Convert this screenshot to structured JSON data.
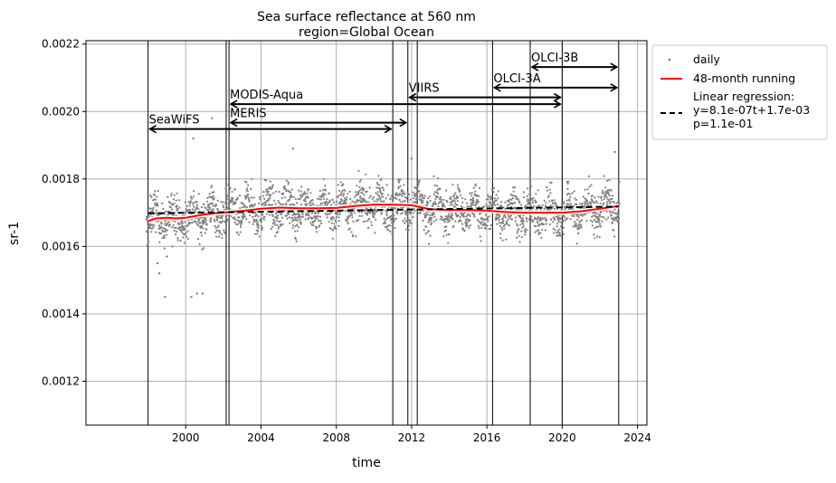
{
  "chart_data": {
    "type": "scatter",
    "title": "Sea surface reflectance at 560 nm",
    "subtitle": "region=Global Ocean",
    "xlabel": "time",
    "ylabel": "sr-1",
    "xlim": [
      1994.7,
      2024.5
    ],
    "ylim": [
      0.00107,
      0.00221
    ],
    "x_ticks": [
      2000,
      2004,
      2008,
      2012,
      2016,
      2020,
      2024
    ],
    "x_tick_labels": [
      "2000",
      "2004",
      "2008",
      "2012",
      "2016",
      "2020",
      "2024"
    ],
    "y_ticks": [
      0.0012,
      0.0014,
      0.0016,
      0.0018,
      0.002,
      0.0022
    ],
    "y_tick_labels": [
      "0.0012",
      "0.0014",
      "0.0016",
      "0.0018",
      "0.0020",
      "0.0022"
    ],
    "grid": true,
    "legend_position": "outside-top-right",
    "legend": [
      {
        "label": "daily",
        "style": "point",
        "color": "#808080"
      },
      {
        "label": "48-month running",
        "style": "line",
        "color": "#ff0000"
      },
      {
        "label": "Linear regression:\ny=8.1e-07t+1.7e-03\np=1.1e-01",
        "style": "dashed",
        "color": "#000000"
      }
    ],
    "daily_series": {
      "name": "daily",
      "x_range": [
        1997.9,
        2023.05
      ],
      "typical_range": [
        0.00163,
        0.00178
      ],
      "outliers": [
        {
          "x": 1998.5,
          "y": 0.00155
        },
        {
          "x": 1998.6,
          "y": 0.00152
        },
        {
          "x": 1999.0,
          "y": 0.00157
        },
        {
          "x": 1998.9,
          "y": 0.00145
        },
        {
          "x": 1999.3,
          "y": 0.0016
        },
        {
          "x": 2000.3,
          "y": 0.00145
        },
        {
          "x": 2000.6,
          "y": 0.00146
        },
        {
          "x": 2000.9,
          "y": 0.00146
        },
        {
          "x": 2000.4,
          "y": 0.00192
        },
        {
          "x": 2002.3,
          "y": 0.0019
        },
        {
          "x": 2001.4,
          "y": 0.00198
        },
        {
          "x": 2005.7,
          "y": 0.00189
        },
        {
          "x": 2012.0,
          "y": 0.00186
        },
        {
          "x": 2022.8,
          "y": 0.00188
        }
      ]
    },
    "running_mean": {
      "name": "48-month running",
      "x": [
        1998.0,
        1998.4,
        1999.0,
        1999.5,
        2000.0,
        2000.5,
        2001.0,
        2001.5,
        2002.0,
        2002.5,
        2003.0,
        2004.0,
        2005.0,
        2006.0,
        2007.0,
        2008.0,
        2009.0,
        2010.0,
        2011.0,
        2012.0,
        2013.0,
        2014.0,
        2015.0,
        2016.0,
        2017.0,
        2018.0,
        2019.0,
        2020.0,
        2021.0,
        2022.0,
        2023.0
      ],
      "y": [
        0.001675,
        0.001683,
        0.001685,
        0.001683,
        0.001685,
        0.00169,
        0.001695,
        0.001698,
        0.0017,
        0.001703,
        0.001705,
        0.001712,
        0.001715,
        0.001713,
        0.001713,
        0.001714,
        0.00172,
        0.001724,
        0.001724,
        0.001722,
        0.00171,
        0.001708,
        0.001708,
        0.001706,
        0.001702,
        0.0017,
        0.0017,
        0.0017,
        0.001704,
        0.001712,
        0.00172
      ]
    },
    "linear_regression": {
      "name": "Linear regression",
      "x": [
        1998.0,
        2023.0
      ],
      "y": [
        0.001698,
        0.001718
      ]
    },
    "vertical_lines": [
      1998.0,
      2002.15,
      2002.3,
      2011.0,
      2011.8,
      2012.3,
      2016.3,
      2018.3,
      2020.0,
      2023.0
    ],
    "missions": [
      {
        "name": "SeaWiFS",
        "start": 1998.0,
        "end": 2011.0,
        "y": 0.001948
      },
      {
        "name": "MERIS",
        "start": 2002.3,
        "end": 2011.8,
        "y": 0.001967
      },
      {
        "name": "MODIS-Aqua",
        "start": 2002.3,
        "end": 2020.0,
        "y": 0.002022
      },
      {
        "name": "VIIRS",
        "start": 2011.8,
        "end": 2020.0,
        "y": 0.002042
      },
      {
        "name": "OLCI-3A",
        "start": 2016.3,
        "end": 2023.0,
        "y": 0.002071
      },
      {
        "name": "OLCI-3B",
        "start": 2018.3,
        "end": 2023.0,
        "y": 0.002132
      }
    ]
  }
}
